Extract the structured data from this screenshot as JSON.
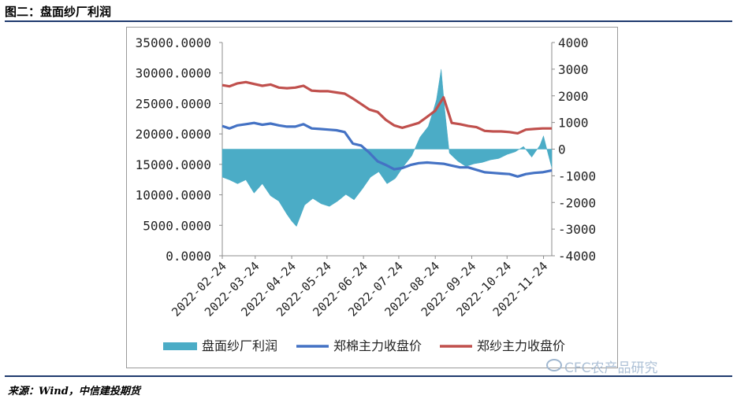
{
  "header": {
    "title": "图二：盘面纱厂利润"
  },
  "footer": {
    "source": "来源：Wind，中信建投期货",
    "watermark": "CFC农产品研究"
  },
  "colors": {
    "profit": "#4bacc6",
    "cotton": "#4472c4",
    "yarn": "#c0504d",
    "rule": "#1f3a6e"
  },
  "chart_data": {
    "type": "line",
    "title": "",
    "xlabel": "",
    "x_tick_labels": [
      "2022-02-24",
      "2022-03-24",
      "2022-04-24",
      "2022-05-24",
      "2022-06-24",
      "2022-07-24",
      "2022-08-24",
      "2022-09-24",
      "2022-10-24",
      "2022-11-24"
    ],
    "x_range": [
      "2022-02-24",
      "2022-12-01"
    ],
    "y_left": {
      "lim": [
        0,
        35000
      ],
      "ticks": [
        "0.0000",
        "5000.0000",
        "10000.0000",
        "15000.0000",
        "20000.0000",
        "25000.0000",
        "30000.0000",
        "35000.0000"
      ]
    },
    "y_right": {
      "lim": [
        -4000,
        4000
      ],
      "ticks": [
        "-4000",
        "-3000",
        "-2000",
        "-1000",
        "0",
        "1000",
        "2000",
        "3000",
        "4000"
      ]
    },
    "legend_position": "bottom",
    "series": [
      {
        "name": "盘面纱厂利润",
        "kind": "area",
        "axis": "right",
        "x": [
          "2022-02-24",
          "2022-03-02",
          "2022-03-09",
          "2022-03-16",
          "2022-03-23",
          "2022-03-30",
          "2022-04-06",
          "2022-04-13",
          "2022-04-20",
          "2022-04-24",
          "2022-04-28",
          "2022-05-05",
          "2022-05-12",
          "2022-05-19",
          "2022-05-26",
          "2022-06-02",
          "2022-06-09",
          "2022-06-16",
          "2022-06-23",
          "2022-06-30",
          "2022-07-07",
          "2022-07-14",
          "2022-07-21",
          "2022-07-28",
          "2022-08-04",
          "2022-08-11",
          "2022-08-18",
          "2022-08-22",
          "2022-08-25",
          "2022-08-29",
          "2022-09-01",
          "2022-09-05",
          "2022-09-12",
          "2022-09-19",
          "2022-09-26",
          "2022-10-03",
          "2022-10-10",
          "2022-10-17",
          "2022-10-24",
          "2022-10-31",
          "2022-11-07",
          "2022-11-14",
          "2022-11-21",
          "2022-11-24",
          "2022-11-28",
          "2022-12-01"
        ],
        "values": [
          -1050,
          -1150,
          -1300,
          -1150,
          -1650,
          -1300,
          -1750,
          -1950,
          -2450,
          -2700,
          -2900,
          -2100,
          -1850,
          -2050,
          -2150,
          -1950,
          -1700,
          -1900,
          -1500,
          -1050,
          -850,
          -1300,
          -1100,
          -650,
          -250,
          450,
          850,
          1400,
          1850,
          3000,
          1500,
          -150,
          -450,
          -650,
          -550,
          -500,
          -400,
          -350,
          -200,
          -100,
          100,
          -300,
          150,
          500,
          -200,
          -700
        ]
      },
      {
        "name": "郑棉主力收盘价",
        "kind": "line",
        "axis": "left",
        "x": [
          "2022-02-24",
          "2022-03-02",
          "2022-03-09",
          "2022-03-16",
          "2022-03-23",
          "2022-03-30",
          "2022-04-06",
          "2022-04-13",
          "2022-04-20",
          "2022-04-27",
          "2022-05-04",
          "2022-05-11",
          "2022-05-18",
          "2022-05-25",
          "2022-06-01",
          "2022-06-08",
          "2022-06-15",
          "2022-06-22",
          "2022-06-29",
          "2022-07-06",
          "2022-07-13",
          "2022-07-20",
          "2022-07-27",
          "2022-08-03",
          "2022-08-10",
          "2022-08-17",
          "2022-08-24",
          "2022-08-31",
          "2022-09-07",
          "2022-09-14",
          "2022-09-21",
          "2022-09-28",
          "2022-10-05",
          "2022-10-12",
          "2022-10-19",
          "2022-10-26",
          "2022-11-02",
          "2022-11-09",
          "2022-11-16",
          "2022-11-23",
          "2022-12-01"
        ],
        "values": [
          21300,
          20900,
          21400,
          21600,
          21800,
          21500,
          21700,
          21400,
          21200,
          21200,
          21600,
          20900,
          20800,
          20700,
          20600,
          20300,
          18400,
          18100,
          16900,
          15500,
          14900,
          14200,
          14400,
          14900,
          15200,
          15300,
          15200,
          15100,
          14800,
          14500,
          14500,
          14100,
          13700,
          13600,
          13500,
          13400,
          13000,
          13400,
          13600,
          13700,
          14000
        ]
      },
      {
        "name": "郑纱主力收盘价",
        "kind": "line",
        "axis": "left",
        "x": [
          "2022-02-24",
          "2022-03-02",
          "2022-03-09",
          "2022-03-16",
          "2022-03-23",
          "2022-03-30",
          "2022-04-06",
          "2022-04-13",
          "2022-04-20",
          "2022-04-27",
          "2022-05-04",
          "2022-05-11",
          "2022-05-18",
          "2022-05-25",
          "2022-06-01",
          "2022-06-08",
          "2022-06-15",
          "2022-06-22",
          "2022-06-29",
          "2022-07-06",
          "2022-07-13",
          "2022-07-20",
          "2022-07-27",
          "2022-08-03",
          "2022-08-10",
          "2022-08-17",
          "2022-08-24",
          "2022-08-31",
          "2022-09-07",
          "2022-09-14",
          "2022-09-21",
          "2022-09-28",
          "2022-10-05",
          "2022-10-12",
          "2022-10-19",
          "2022-10-26",
          "2022-11-02",
          "2022-11-09",
          "2022-11-16",
          "2022-11-23",
          "2022-12-01"
        ],
        "values": [
          28000,
          27800,
          28300,
          28500,
          28200,
          27900,
          28100,
          27600,
          27500,
          27600,
          27900,
          27100,
          27000,
          27000,
          26800,
          26600,
          25800,
          24900,
          24000,
          23600,
          22300,
          21400,
          21000,
          21400,
          21800,
          22800,
          23800,
          26000,
          21800,
          21600,
          21300,
          21100,
          20500,
          20400,
          20400,
          20300,
          20100,
          20700,
          20800,
          20900,
          20900
        ]
      }
    ]
  }
}
